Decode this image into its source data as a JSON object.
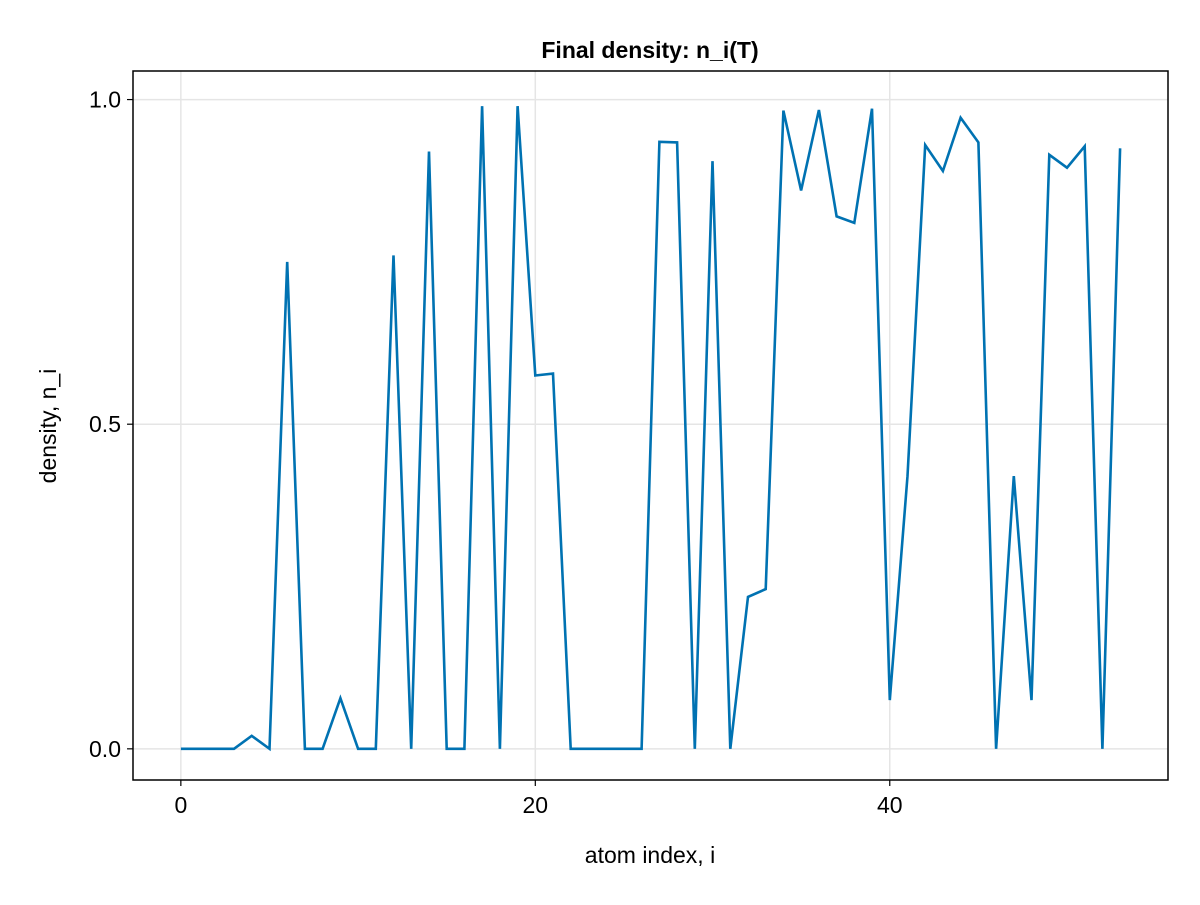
{
  "chart_data": {
    "type": "line",
    "title": "Final density: n_i(T)",
    "xlabel": "atom index, i",
    "ylabel": "density, n_i",
    "xlim": [
      -2.7,
      55.7
    ],
    "ylim": [
      -0.048,
      1.044
    ],
    "xticks": [
      0,
      20,
      40
    ],
    "xtick_labels": [
      "0",
      "20",
      "40"
    ],
    "yticks": [
      0.0,
      0.5,
      1.0
    ],
    "ytick_labels": [
      "0.0",
      "0.5",
      "1.0"
    ],
    "grid": true,
    "legend": "none",
    "line_color": "#0072b2",
    "x": [
      0,
      1,
      2,
      3,
      4,
      5,
      6,
      7,
      8,
      9,
      10,
      11,
      12,
      13,
      14,
      15,
      16,
      17,
      18,
      19,
      20,
      21,
      22,
      23,
      24,
      25,
      26,
      27,
      28,
      29,
      30,
      31,
      32,
      33,
      34,
      35,
      36,
      37,
      38,
      39,
      40,
      41,
      42,
      43,
      44,
      45,
      46,
      47,
      48,
      49,
      50,
      51,
      52,
      53
    ],
    "y": [
      0,
      0,
      0,
      0,
      0.02,
      0,
      0.75,
      0,
      0,
      0.078,
      0,
      0,
      0.76,
      0,
      0.92,
      0,
      0,
      0.99,
      0,
      0.99,
      0.575,
      0.578,
      0,
      0,
      0,
      0,
      0,
      0.935,
      0.934,
      0,
      0.905,
      0,
      0.234,
      0.246,
      0.983,
      0.86,
      0.984,
      0.82,
      0.81,
      0.986,
      0.075,
      0.42,
      0.93,
      0.89,
      0.972,
      0.934,
      0,
      0.42,
      0.075,
      0.915,
      0.895,
      0.928,
      0,
      0.925
    ]
  }
}
